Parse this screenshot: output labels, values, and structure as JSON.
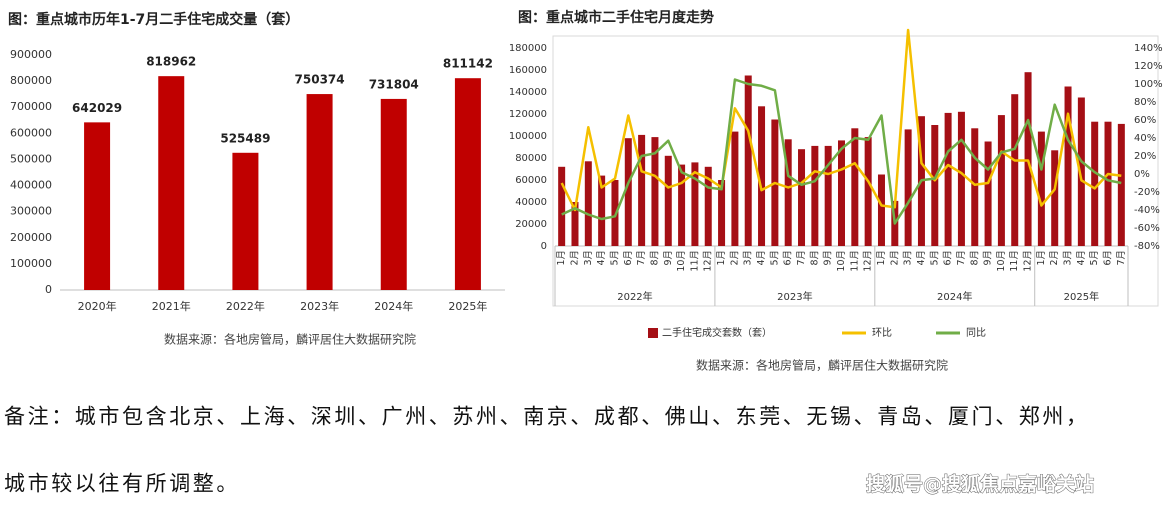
{
  "chart_data": [
    {
      "type": "bar",
      "title": "图：重点城市历年1-7月二手住宅成交量（套）",
      "categories": [
        "2020年",
        "2021年",
        "2022年",
        "2023年",
        "2024年",
        "2025年"
      ],
      "values": [
        642029,
        818962,
        525489,
        750374,
        731804,
        811142
      ],
      "color": "#c00000",
      "ylim": [
        0,
        900000
      ],
      "yticks": [
        0,
        100000,
        200000,
        300000,
        400000,
        500000,
        600000,
        700000,
        800000,
        900000
      ],
      "source": "数据来源：各地房管局，麟评居住大数据研究院"
    },
    {
      "type": "bar_line",
      "title": "图：重点城市二手住宅月度走势",
      "categories": [
        "1月",
        "2月",
        "3月",
        "4月",
        "5月",
        "6月",
        "7月",
        "8月",
        "9月",
        "10月",
        "11月",
        "12月",
        "1月",
        "2月",
        "3月",
        "4月",
        "5月",
        "6月",
        "7月",
        "8月",
        "9月",
        "10月",
        "11月",
        "12月",
        "1月",
        "2月",
        "3月",
        "4月",
        "5月",
        "6月",
        "7月",
        "8月",
        "9月",
        "10月",
        "11月",
        "12月",
        "1月",
        "2月",
        "3月",
        "4月",
        "5月",
        "6月",
        "7月"
      ],
      "group_labels": [
        "2022年",
        "2023年",
        "2024年",
        "2025年"
      ],
      "series": [
        {
          "name": "二手住宅成交套数（套）",
          "type": "bar",
          "color": "#a50f15",
          "values": [
            72000,
            40000,
            77000,
            64000,
            60000,
            98000,
            101000,
            99000,
            82000,
            74000,
            76000,
            72000,
            60000,
            104000,
            155000,
            127000,
            115000,
            97000,
            88000,
            91000,
            91000,
            96000,
            107000,
            99000,
            65000,
            41000,
            106000,
            118000,
            110000,
            121000,
            122000,
            107000,
            95000,
            119000,
            138000,
            158000,
            104000,
            87000,
            145000,
            135000,
            113000,
            113000,
            111000
          ]
        },
        {
          "name": "环比",
          "type": "line",
          "axis": "y2",
          "color": "#f5c000",
          "values": [
            -10,
            -40,
            52,
            -15,
            -5,
            65,
            3,
            -2,
            -15,
            -10,
            2,
            -5,
            -15,
            73,
            48,
            -18,
            -10,
            -15,
            -10,
            3,
            0,
            5,
            12,
            -8,
            -35,
            -37,
            160,
            12,
            -7,
            10,
            1,
            -12,
            -10,
            25,
            15,
            15,
            -35,
            -17,
            67,
            -7,
            -16,
            0,
            -2
          ]
        },
        {
          "name": "同比",
          "type": "line",
          "axis": "y2",
          "color": "#70ad47",
          "values": [
            -45,
            -38,
            -45,
            -50,
            -47,
            -10,
            20,
            23,
            37,
            2,
            -5,
            -15,
            -17,
            105,
            100,
            98,
            93,
            -2,
            -12,
            -8,
            10,
            28,
            40,
            38,
            65,
            -55,
            -32,
            -7,
            -5,
            25,
            38,
            18,
            5,
            24,
            28,
            60,
            5,
            77,
            38,
            14,
            2,
            -7,
            -10
          ]
        }
      ],
      "ylim": [
        0,
        180000
      ],
      "yticks": [
        0,
        20000,
        40000,
        60000,
        80000,
        100000,
        120000,
        140000,
        160000,
        180000
      ],
      "y2lim": [
        -80,
        140
      ],
      "y2ticks": [
        {
          "value": -80,
          "label": "-80%"
        },
        {
          "value": -60,
          "label": "-60%"
        },
        {
          "value": -40,
          "label": "-40%"
        },
        {
          "value": -20,
          "label": "-20%"
        },
        {
          "value": 0,
          "label": "0%"
        },
        {
          "value": 20,
          "label": "20%"
        },
        {
          "value": 40,
          "label": "40%"
        },
        {
          "value": 60,
          "label": "60%"
        },
        {
          "value": 80,
          "label": "80%"
        },
        {
          "value": 100,
          "label": "100%"
        },
        {
          "value": 120,
          "label": "120%"
        },
        {
          "value": 140,
          "label": "140%"
        }
      ],
      "source": "数据来源：各地房管局，麟评居住大数据研究院"
    }
  ],
  "note": [
    "备注：城市包含北京、上海、深圳、广州、苏州、南京、成都、佛山、东莞、无锡、青岛、厦门、郑州，",
    "城市较以往有所调整。"
  ],
  "watermark": "搜狐号@搜狐焦点嘉峪关站"
}
